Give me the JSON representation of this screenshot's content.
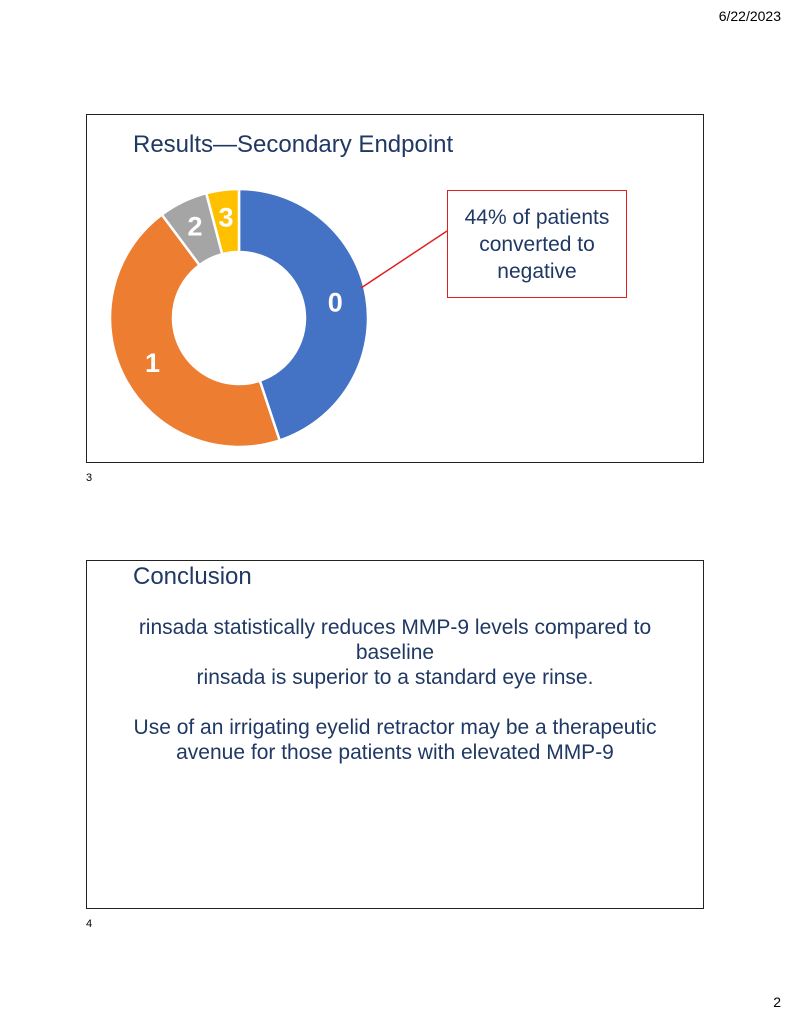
{
  "header": {
    "date": "6/22/2023"
  },
  "footer": {
    "page_number": "2"
  },
  "slides": [
    {
      "number": "3",
      "title": "Results—Secondary Endpoint",
      "callout": "44% of patients converted to negative",
      "chart_data": {
        "type": "pie",
        "variant": "donut",
        "title": "",
        "categories": [
          "0",
          "1",
          "2",
          "3"
        ],
        "values": [
          44,
          44,
          6,
          4
        ],
        "colors": [
          "#4472c4",
          "#ed7d31",
          "#a5a5a5",
          "#ffc000"
        ],
        "data_labels": [
          "0",
          "1",
          "2",
          "3"
        ],
        "legend": "none"
      }
    },
    {
      "number": "4",
      "title": "Conclusion",
      "paragraphs": [
        "rinsada statistically reduces MMP-9 levels compared to baseline",
        "rinsada is superior to a standard eye rinse.",
        "Use of an irrigating eyelid retractor may be a therapeutic avenue for those patients with elevated MMP-9"
      ]
    }
  ]
}
